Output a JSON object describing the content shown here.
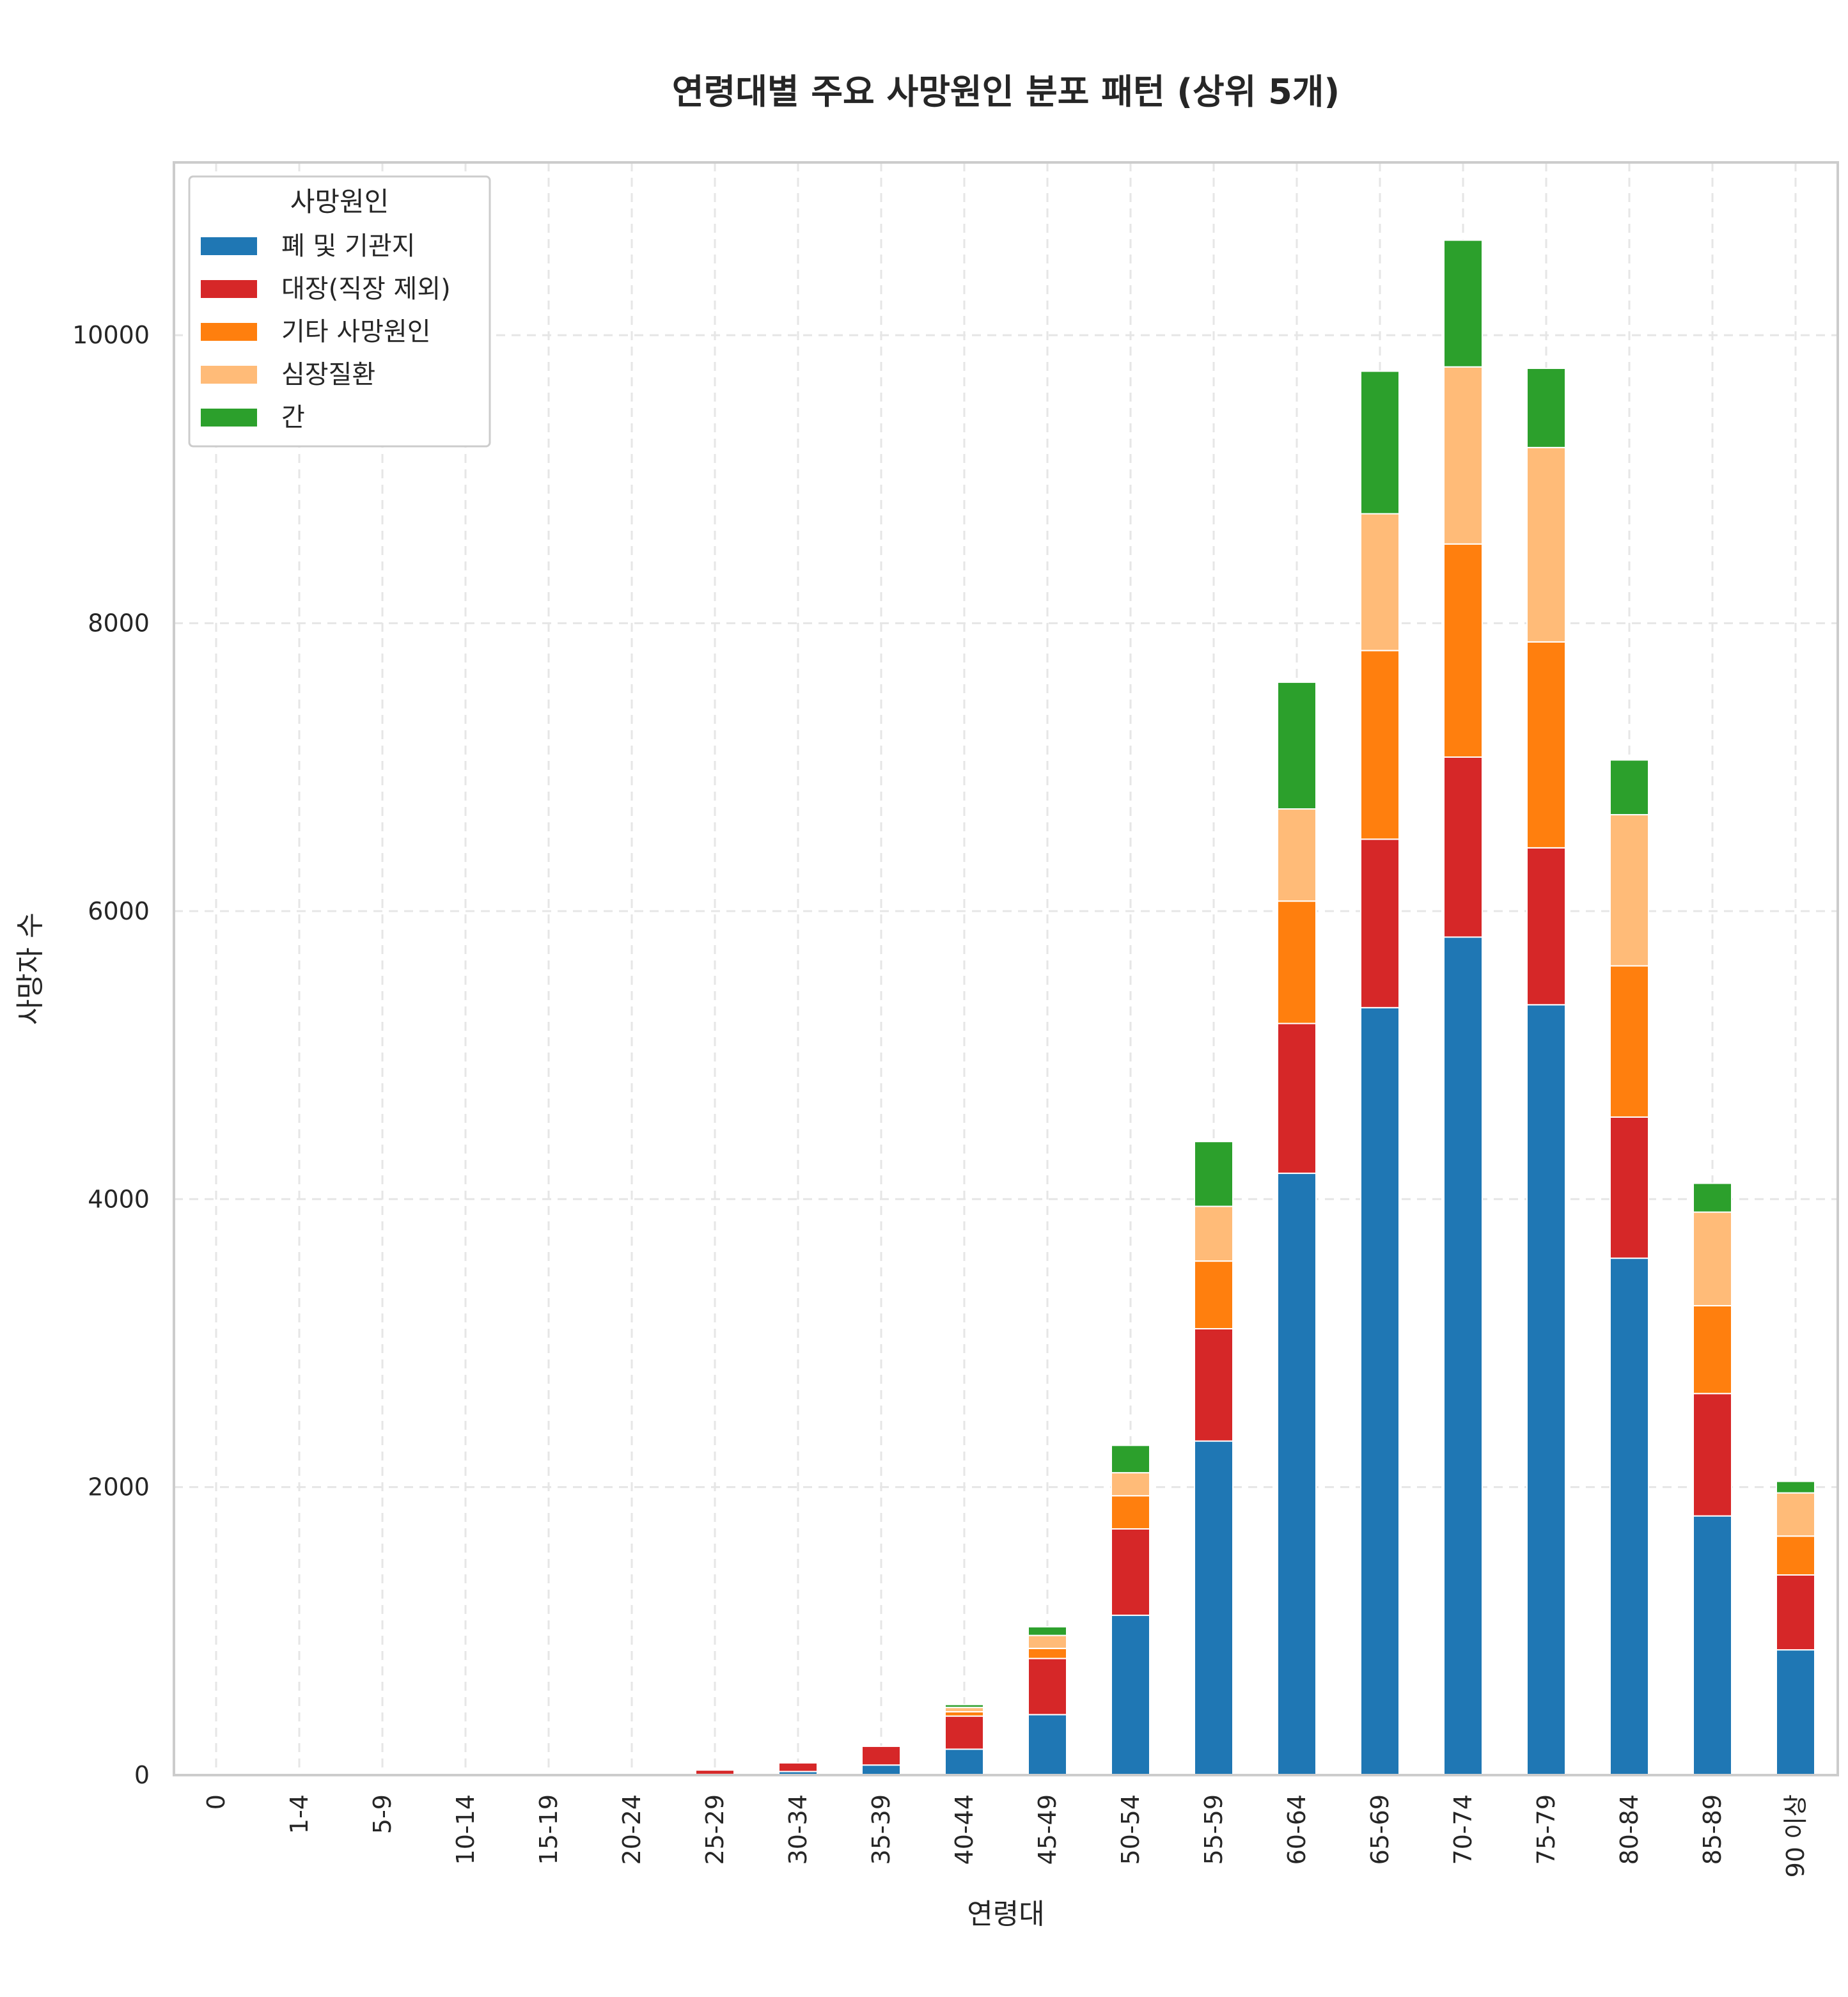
{
  "chart_data": {
    "type": "bar",
    "stacked": true,
    "title": "연령대별 주요 사망원인 분포 패턴 (상위 5개)",
    "xlabel": "연령대",
    "ylabel": "사망자 수",
    "ylim": [
      0,
      11200
    ],
    "yticks": [
      0,
      2000,
      4000,
      6000,
      8000,
      10000
    ],
    "grid": true,
    "legend": {
      "title": "사망원인",
      "position": "top-left"
    },
    "categories": [
      "0",
      "1-4",
      "5-9",
      "10-14",
      "15-19",
      "20-24",
      "25-29",
      "30-34",
      "35-39",
      "40-44",
      "45-49",
      "50-54",
      "55-59",
      "60-64",
      "65-69",
      "70-74",
      "75-79",
      "80-84",
      "85-89",
      "90 이상"
    ],
    "series": [
      {
        "name": "폐 및 기관지",
        "color": "#1f77b4",
        "values": [
          0,
          0,
          0,
          0,
          0,
          0,
          5,
          25,
          70,
          180,
          420,
          1110,
          2320,
          4180,
          5330,
          5820,
          5350,
          3590,
          1800,
          870
        ]
      },
      {
        "name": "대장(직장 제외)",
        "color": "#d62728",
        "values": [
          0,
          0,
          0,
          0,
          0,
          0,
          30,
          60,
          130,
          230,
          390,
          600,
          780,
          1040,
          1170,
          1250,
          1090,
          980,
          850,
          520
        ]
      },
      {
        "name": "기타 사망원인",
        "color": "#ff7f0e",
        "values": [
          0,
          0,
          0,
          0,
          0,
          0,
          0,
          0,
          0,
          30,
          70,
          230,
          470,
          850,
          1310,
          1480,
          1430,
          1050,
          610,
          270
        ]
      },
      {
        "name": "심장질환",
        "color": "#ffbb78",
        "values": [
          0,
          0,
          0,
          0,
          0,
          0,
          0,
          0,
          0,
          30,
          90,
          160,
          380,
          640,
          950,
          1230,
          1350,
          1050,
          650,
          300
        ]
      },
      {
        "name": "간",
        "color": "#2ca02c",
        "values": [
          0,
          0,
          0,
          0,
          0,
          0,
          0,
          0,
          0,
          20,
          60,
          190,
          450,
          880,
          990,
          880,
          550,
          380,
          200,
          80
        ]
      }
    ]
  }
}
